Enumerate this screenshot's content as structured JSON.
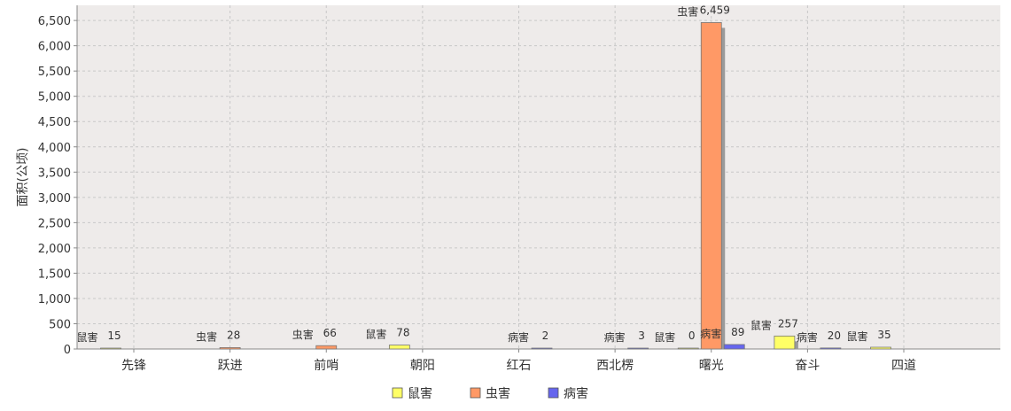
{
  "chart_data": {
    "type": "bar",
    "title": "",
    "xlabel": "",
    "ylabel": "面积(公顷)",
    "ylim": [
      0,
      6800
    ],
    "yticks": [
      0,
      500,
      1000,
      1500,
      2000,
      2500,
      3000,
      3500,
      4000,
      4500,
      5000,
      5500,
      6000,
      6500
    ],
    "grid": true,
    "legend_position": "bottom",
    "categories": [
      "先锋",
      "跃进",
      "前哨",
      "朝阳",
      "红石",
      "西北楞",
      "曙光",
      "奋斗",
      "四道"
    ],
    "series": [
      {
        "name": "鼠害",
        "color": "#ffff66",
        "values": [
          15,
          null,
          null,
          78,
          null,
          null,
          0,
          257,
          35
        ]
      },
      {
        "name": "虫害",
        "color": "#ff9966",
        "values": [
          null,
          28,
          66,
          null,
          null,
          null,
          6459,
          null,
          null
        ]
      },
      {
        "name": "病害",
        "color": "#6666ee",
        "values": [
          null,
          null,
          null,
          null,
          2,
          3,
          89,
          20,
          null
        ]
      }
    ]
  }
}
